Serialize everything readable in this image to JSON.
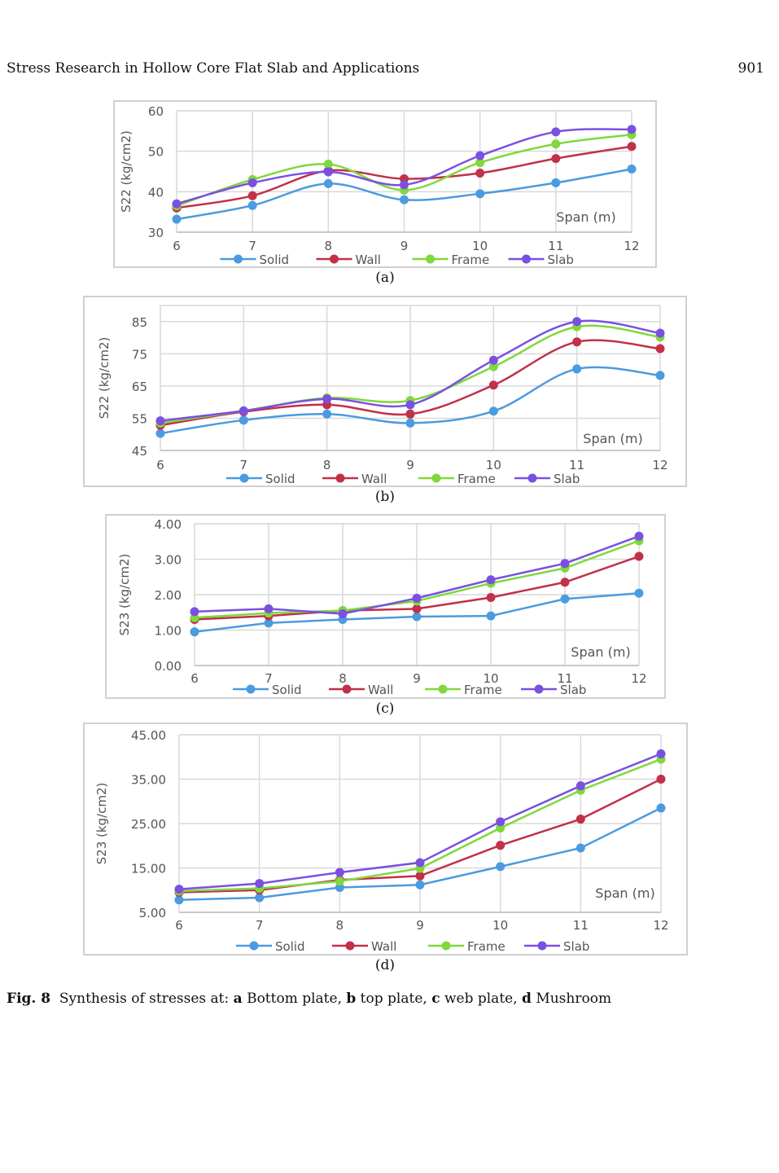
{
  "header": {
    "running_title": "Stress Research in Hollow Core Flat Slab and Applications",
    "page_number": "901"
  },
  "caption": {
    "label": "Fig. 8",
    "text_1": "Synthesis of stresses at: ",
    "a": "a",
    "a_text": " Bottom plate, ",
    "b": "b",
    "b_text": " top plate, ",
    "c": "c",
    "c_text": " web plate, ",
    "d": "d",
    "d_text": " Mushroom"
  },
  "colors": {
    "Solid": "#4a9be0",
    "Wall": "#c23049",
    "Frame": "#80d83c",
    "Slab": "#7a50e2"
  },
  "chart_data": [
    {
      "type": "line",
      "sublabel": "(a)",
      "smooth": true,
      "ylabel": "S22 (kg/cm2)",
      "xlabel": "Span (m)",
      "x": [
        6,
        7,
        8,
        9,
        10,
        11,
        12
      ],
      "xlim": [
        6,
        12
      ],
      "ylim": [
        30,
        60
      ],
      "yticks": [
        "30",
        "40",
        "50",
        "60"
      ],
      "grid": true,
      "legend": "bottom",
      "series": [
        {
          "name": "Solid",
          "values": [
            33.2,
            36.6,
            42.0,
            38.0,
            39.5,
            42.2,
            45.6
          ]
        },
        {
          "name": "Wall",
          "values": [
            36.0,
            39.0,
            45.2,
            43.2,
            44.6,
            48.2,
            51.2
          ]
        },
        {
          "name": "Frame",
          "values": [
            36.5,
            43.0,
            46.8,
            40.4,
            47.2,
            51.8,
            54.1
          ]
        },
        {
          "name": "Slab",
          "values": [
            37.0,
            42.2,
            44.9,
            41.7,
            48.9,
            54.8,
            55.4
          ]
        }
      ]
    },
    {
      "type": "line",
      "sublabel": "(b)",
      "smooth": true,
      "ylabel": "S22 (kg/cm2)",
      "xlabel": "Span (m)",
      "x": [
        6,
        7,
        8,
        9,
        10,
        11,
        12
      ],
      "xlim": [
        6,
        12
      ],
      "ylim": [
        45,
        90
      ],
      "yticks": [
        "45",
        "55",
        "65",
        "75",
        "85"
      ],
      "grid": true,
      "legend": "bottom",
      "series": [
        {
          "name": "Solid",
          "values": [
            50.3,
            54.4,
            56.3,
            53.5,
            57.2,
            70.3,
            68.3
          ]
        },
        {
          "name": "Wall",
          "values": [
            52.8,
            57.0,
            59.2,
            56.3,
            65.3,
            78.7,
            76.6
          ]
        },
        {
          "name": "Frame",
          "values": [
            53.5,
            57.3,
            61.3,
            60.5,
            71.0,
            83.4,
            80.2
          ]
        },
        {
          "name": "Slab",
          "values": [
            54.2,
            57.3,
            61.0,
            59.2,
            73.0,
            85.0,
            81.4
          ]
        }
      ]
    },
    {
      "type": "line",
      "sublabel": "(c)",
      "smooth": false,
      "ylabel": "S23 (kg/cm2)",
      "xlabel": "Span (m)",
      "x": [
        6,
        7,
        8,
        9,
        10,
        11,
        12
      ],
      "xlim": [
        6,
        12
      ],
      "ylim": [
        0,
        4
      ],
      "yticks": [
        "0.00",
        "1.00",
        "2.00",
        "3.00",
        "4.00"
      ],
      "grid": true,
      "legend": "bottom",
      "series": [
        {
          "name": "Solid",
          "values": [
            0.95,
            1.2,
            1.3,
            1.38,
            1.4,
            1.88,
            2.04
          ]
        },
        {
          "name": "Wall",
          "values": [
            1.3,
            1.4,
            1.55,
            1.6,
            1.92,
            2.35,
            3.08
          ]
        },
        {
          "name": "Frame",
          "values": [
            1.35,
            1.48,
            1.55,
            1.82,
            2.32,
            2.75,
            3.52
          ]
        },
        {
          "name": "Slab",
          "values": [
            1.52,
            1.6,
            1.46,
            1.9,
            2.42,
            2.88,
            3.65
          ]
        }
      ]
    },
    {
      "type": "line",
      "sublabel": "(d)",
      "smooth": false,
      "ylabel": "S23 (kg/cm2)",
      "xlabel": "Span (m)",
      "x": [
        6,
        7,
        8,
        9,
        10,
        11,
        12
      ],
      "xlim": [
        6,
        12
      ],
      "ylim": [
        5,
        45
      ],
      "yticks": [
        "5.00",
        "15.00",
        "25.00",
        "35.00",
        "45.00"
      ],
      "grid": true,
      "legend": "bottom",
      "series": [
        {
          "name": "Solid",
          "values": [
            7.8,
            8.3,
            10.6,
            11.2,
            15.3,
            19.5,
            28.5
          ]
        },
        {
          "name": "Wall",
          "values": [
            9.5,
            10.0,
            12.3,
            13.2,
            20.1,
            26.0,
            35.0
          ]
        },
        {
          "name": "Frame",
          "values": [
            9.8,
            10.4,
            12.0,
            14.9,
            24.0,
            32.5,
            39.5
          ]
        },
        {
          "name": "Slab",
          "values": [
            10.2,
            11.5,
            14.0,
            16.2,
            25.4,
            33.5,
            40.7
          ]
        }
      ]
    }
  ]
}
